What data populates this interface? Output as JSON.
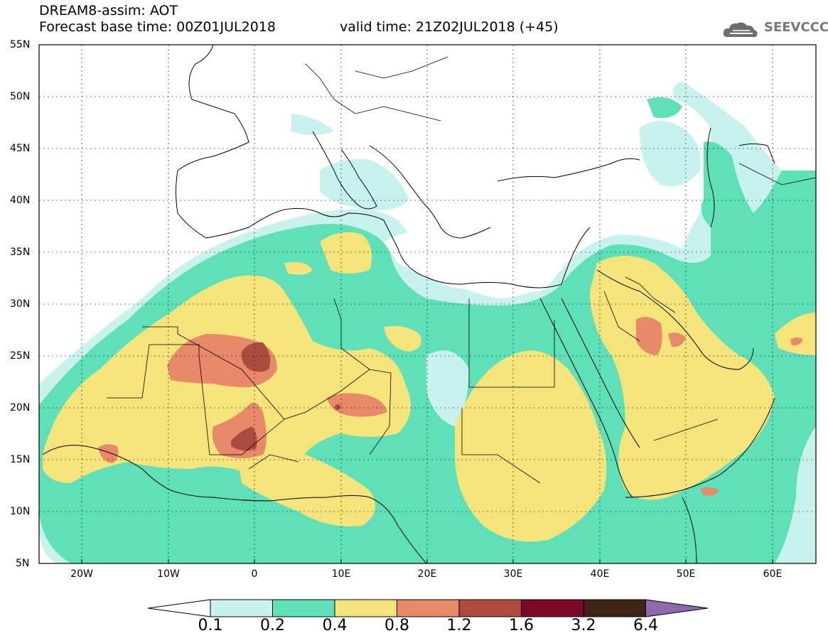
{
  "header": {
    "title": "DREAM8-assim: AOT",
    "base_time": "Forecast base time: 00Z01JUL2018",
    "valid_time": "valid time: 21Z02JUL2018 (+45)",
    "logo_text": "SEEVCCC"
  },
  "map": {
    "lat_labels": [
      "55N",
      "50N",
      "45N",
      "40N",
      "35N",
      "30N",
      "25N",
      "20N",
      "15N",
      "10N",
      "5N"
    ],
    "lon_labels": [
      "20W",
      "10W",
      "0",
      "10E",
      "20E",
      "30E",
      "40E",
      "50E",
      "60E"
    ],
    "extent": {
      "lon_min": -25,
      "lon_max": 65,
      "lat_min": 5,
      "lat_max": 55
    }
  },
  "colorbar": {
    "labels": [
      "0.1",
      "0.2",
      "0.4",
      "0.8",
      "1.2",
      "1.6",
      "3.2",
      "6.4"
    ],
    "colors": [
      "#c8f2ec",
      "#5ee0b8",
      "#f4e47a",
      "#e8896a",
      "#ac4c3e",
      "#7a0a26",
      "#3e2414",
      "#9069ac"
    ]
  },
  "legend_colors": {
    "lt01": "#ffffff",
    "c1": "#c8f2ec",
    "c2": "#5ee0b8",
    "c3": "#f4e47a",
    "c4": "#e8896a",
    "c5": "#ac4c3e",
    "c6": "#7a0a26",
    "c7": "#3e2414",
    "gt": "#9069ac"
  }
}
